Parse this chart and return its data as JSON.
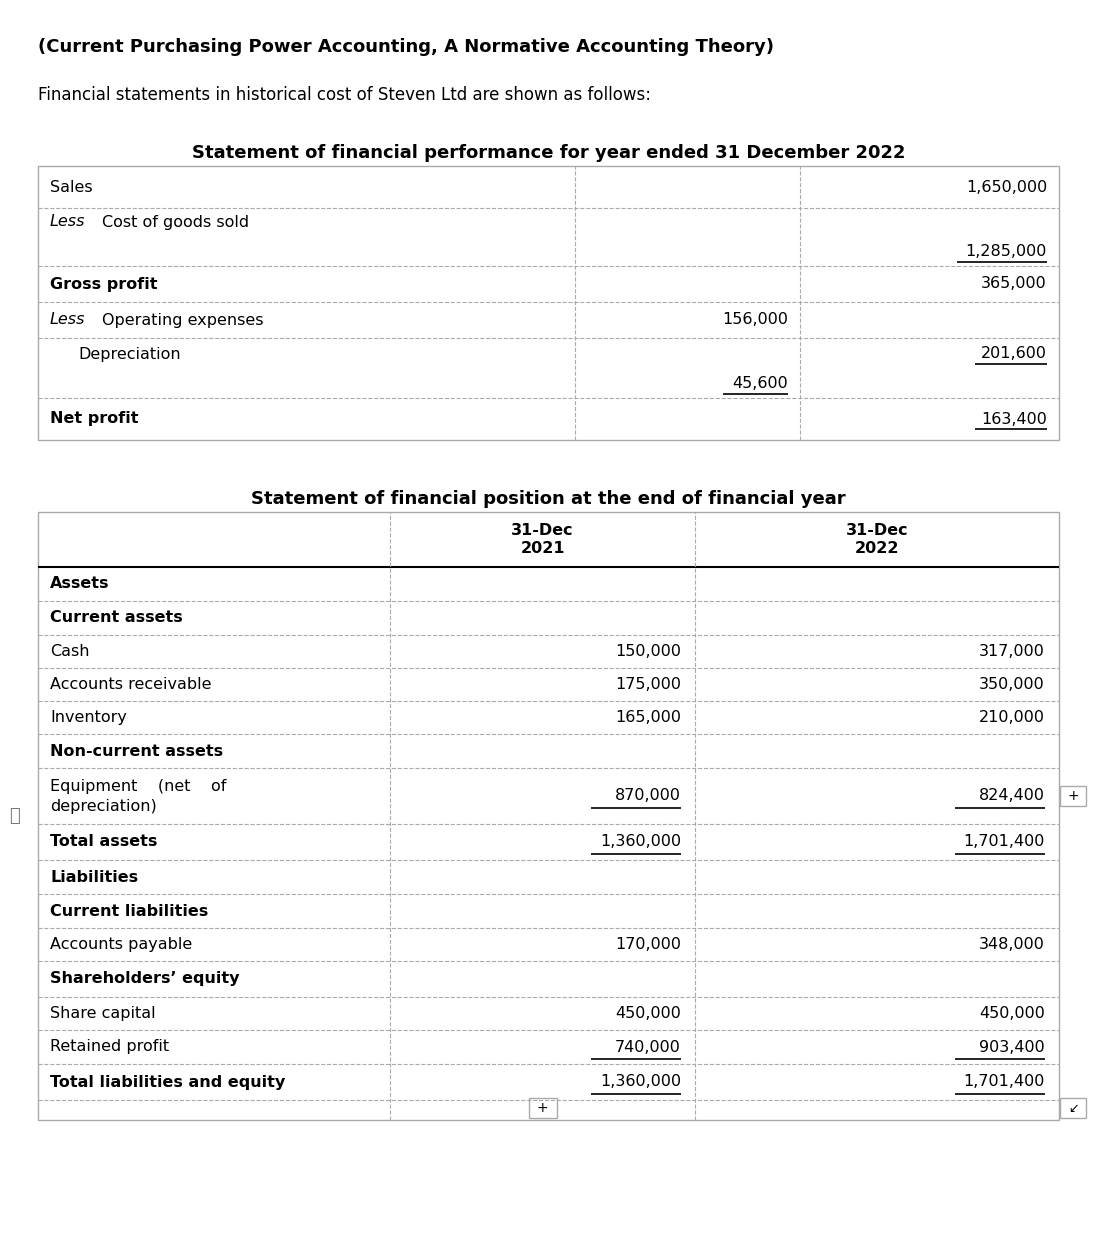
{
  "title_line": "(Current Purchasing Power Accounting, A Normative Accounting Theory)",
  "subtitle_line": "Financial statements in historical cost of Steven Ltd are shown as follows:",
  "perf_heading": "Statement of financial performance for year ended 31 December 2022",
  "pos_heading": "Statement of financial position at the end of financial year",
  "bg_color": "#ffffff",
  "border_color": "#aaaaaa",
  "fig_w": 10.97,
  "fig_h": 12.53,
  "dpi": 100
}
